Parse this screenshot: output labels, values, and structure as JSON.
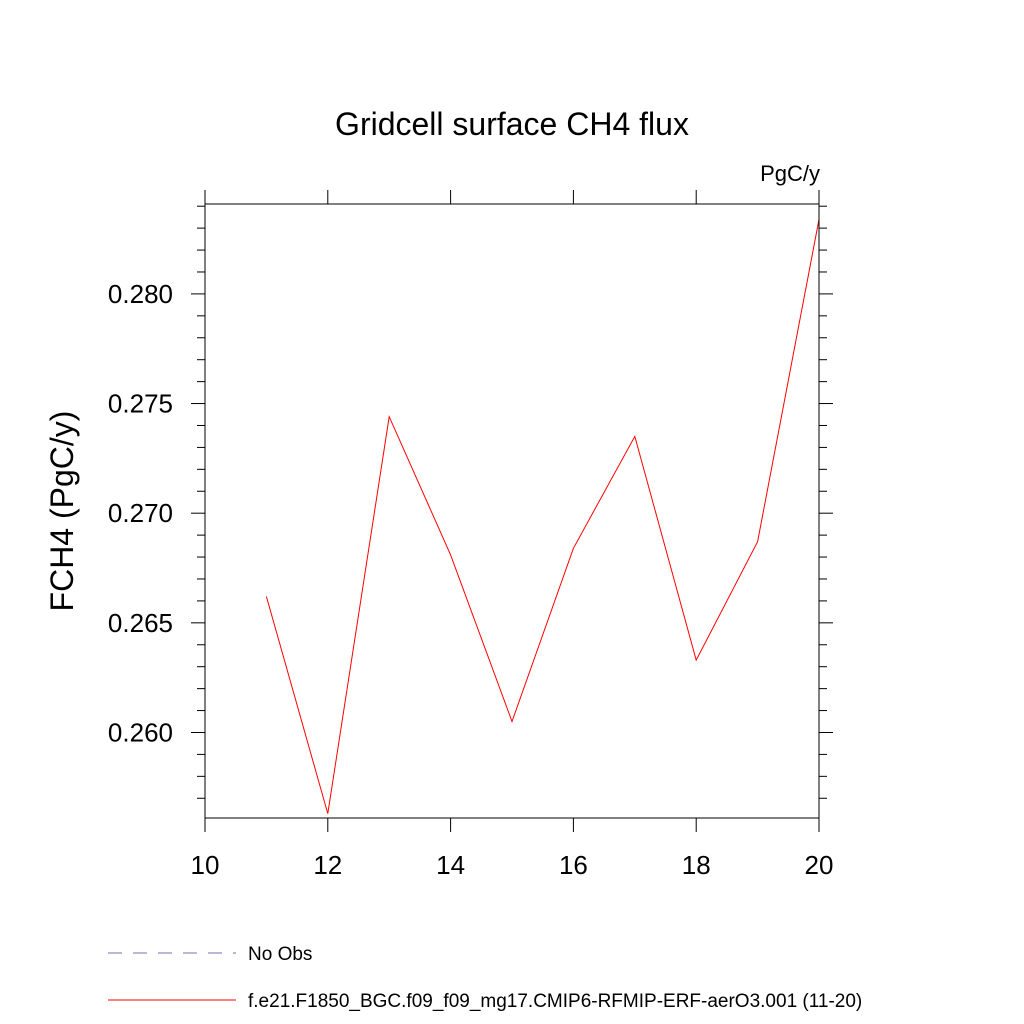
{
  "chart_data": {
    "type": "line",
    "title": "Gridcell surface CH4 flux",
    "units_label": "PgC/y",
    "ylabel": "FCH4  (PgC/y)",
    "xlabel": "",
    "xlim": [
      10,
      20
    ],
    "ylim": [
      0.2561,
      0.2841
    ],
    "xticks": [
      10,
      12,
      14,
      16,
      18,
      20
    ],
    "xtick_labels": [
      "10",
      "12",
      "14",
      "16",
      "18",
      "20"
    ],
    "yticks": [
      0.26,
      0.265,
      0.27,
      0.275,
      0.28
    ],
    "ytick_labels": [
      "0.260",
      "0.265",
      "0.270",
      "0.275",
      "0.280"
    ],
    "y_minor_step": 0.001,
    "grid": false,
    "legend_position": "bottom-left",
    "legend": [
      {
        "label": "No Obs",
        "color": "#7a6fb0",
        "style": "dashed"
      },
      {
        "label": "f.e21.F1850_BGC.f09_f09_mg17.CMIP6-RFMIP-ERF-aerO3.001 (11-20)",
        "color": "#ff0000",
        "style": "solid"
      }
    ],
    "series": [
      {
        "name": "f.e21.F1850_BGC.f09_f09_mg17.CMIP6-RFMIP-ERF-aerO3.001 (11-20)",
        "color": "#ff0000",
        "x": [
          11,
          12,
          13,
          14,
          15,
          16,
          17,
          18,
          19,
          20
        ],
        "y": [
          0.2662,
          0.2563,
          0.2744,
          0.2681,
          0.2605,
          0.2684,
          0.2735,
          0.2633,
          0.2687,
          0.2834
        ]
      }
    ]
  }
}
